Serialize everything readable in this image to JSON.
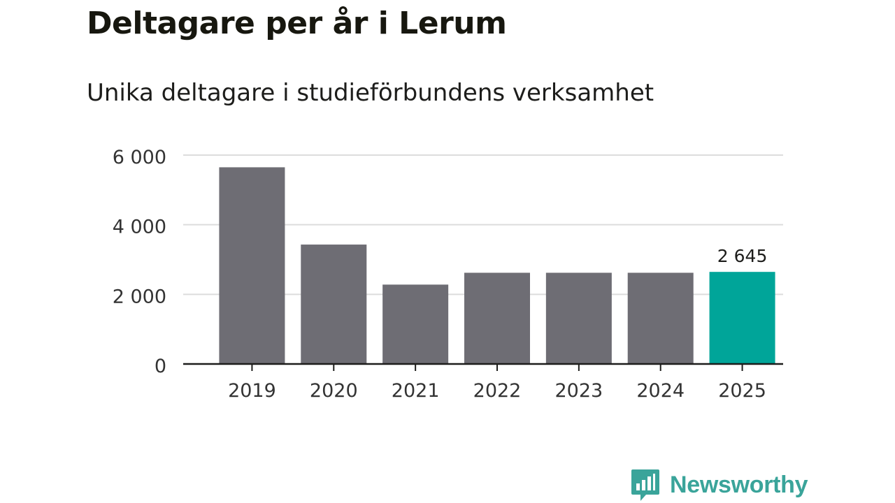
{
  "title": "Deltagare per år i Lerum",
  "subtitle": "Unika deltagare i studieförbundens verksamhet",
  "chart_data": {
    "type": "bar",
    "categories": [
      "2019",
      "2020",
      "2021",
      "2022",
      "2023",
      "2024",
      "2025"
    ],
    "values": [
      5650,
      3430,
      2280,
      2620,
      2620,
      2620,
      2645
    ],
    "ylim": [
      0,
      6000
    ],
    "yticks": [
      0,
      2000,
      4000,
      6000
    ],
    "ytick_labels": [
      "0",
      "2 000",
      "4 000",
      "6 000"
    ],
    "highlight_index": 6,
    "data_label": "2 645",
    "xlabel": "",
    "ylabel": "",
    "grid": true
  },
  "colors": {
    "bar": "#6e6d74",
    "highlight": "#00a599",
    "grid": "#dcdcdc",
    "axis": "#1d1d1b"
  },
  "brand": {
    "name": "Newsworthy",
    "icon": "newsworthy-logo-icon"
  }
}
